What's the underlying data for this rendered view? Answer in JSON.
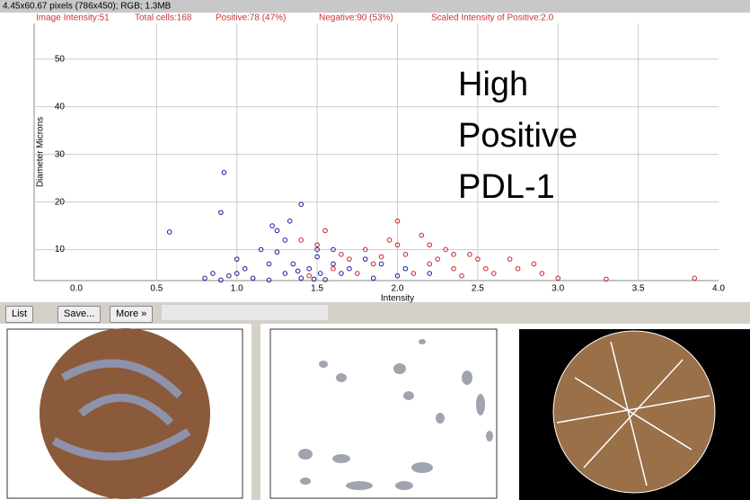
{
  "window": {
    "info": "4.45x60.67 pixels (786x450); RGB; 1.3MB"
  },
  "stats": [
    "Image Intensity:51",
    "Total cells:168",
    "Positive:78 (47%)",
    "Negative:90 (53%)",
    "Scaled Intensity of Positive:2.0"
  ],
  "buttons": [
    "List",
    "Save...",
    "More »"
  ],
  "chart_data": {
    "type": "scatter",
    "xlabel": "Intensity",
    "ylabel": "Diameter Microns",
    "annotation": [
      "High",
      "Positive",
      "PDL-1"
    ],
    "xlim": [
      0,
      4
    ],
    "ylim": [
      3.5,
      57.5
    ],
    "xticks": [
      {
        "value": 0,
        "label": "0.0"
      },
      0.5,
      {
        "value": 1,
        "label": "1.0"
      },
      1.5,
      {
        "value": 2,
        "label": "2.0"
      },
      2.5,
      {
        "value": 3,
        "label": "3.0"
      },
      3.5,
      {
        "value": 4,
        "label": "4.0"
      }
    ],
    "yticks": [
      10,
      20,
      30,
      40,
      50
    ],
    "grid": true,
    "series": [
      {
        "color": "#1a1a9a",
        "x": [
          0.58,
          0.92,
          0.9,
          0.8,
          0.85,
          0.9,
          0.95,
          1.0,
          1.0,
          1.05,
          1.1,
          1.2,
          1.2,
          1.25,
          1.3,
          1.25,
          1.22,
          1.33,
          1.3,
          1.35,
          1.4,
          1.4,
          1.45,
          1.5,
          1.5,
          1.52,
          1.55,
          1.6,
          1.6,
          1.65,
          1.7,
          1.8,
          1.85,
          1.9,
          2.0,
          2.05,
          2.2,
          1.15,
          1.38,
          1.48
        ],
        "values": [
          13.7,
          26.2,
          17.8,
          4,
          5,
          3.6,
          4.5,
          8,
          5,
          6,
          4,
          7,
          3.6,
          9.5,
          12,
          14,
          15,
          16,
          5,
          7,
          19.5,
          4,
          6,
          8.5,
          10,
          5,
          3.7,
          7,
          10,
          5,
          6,
          8,
          4,
          7,
          4.5,
          6,
          5,
          10,
          5.5,
          3.8
        ]
      },
      {
        "color": "#cc2222",
        "x": [
          1.4,
          1.5,
          1.55,
          1.6,
          1.7,
          1.75,
          1.8,
          1.85,
          1.9,
          1.95,
          2.0,
          2.0,
          2.05,
          2.1,
          2.15,
          2.2,
          2.25,
          2.3,
          2.35,
          2.4,
          2.45,
          2.5,
          2.55,
          2.6,
          2.7,
          2.75,
          2.85,
          2.9,
          3.0,
          3.3,
          3.85,
          1.65,
          2.2,
          2.35,
          1.45
        ],
        "values": [
          12,
          11,
          14,
          6,
          8,
          5,
          10,
          7,
          8.5,
          12,
          16,
          11,
          9,
          5,
          13,
          7,
          8,
          10,
          6,
          4.5,
          9,
          8,
          6,
          5,
          8,
          6,
          7,
          5,
          4,
          3.8,
          4,
          9,
          11,
          9,
          4.5
        ]
      }
    ]
  }
}
